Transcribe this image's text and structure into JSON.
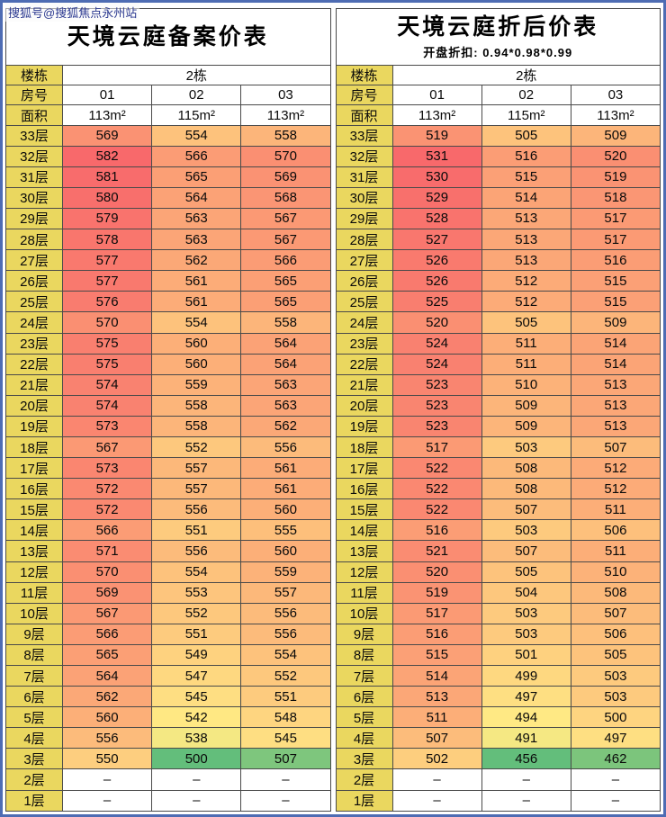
{
  "watermark": "搜狐号@搜狐焦点永州站",
  "labels": {
    "building": "楼栋",
    "room": "房号",
    "area": "面积"
  },
  "chart_data": [
    {
      "type": "heatmap",
      "title": "天境云庭备案价表",
      "subtitle": "",
      "building": "2栋",
      "rooms": [
        "01",
        "02",
        "03"
      ],
      "areas": [
        "113m²",
        "115m²",
        "113m²"
      ],
      "floors": [
        "33层",
        "32层",
        "31层",
        "30层",
        "29层",
        "28层",
        "27层",
        "26层",
        "25层",
        "24层",
        "23层",
        "22层",
        "21层",
        "20层",
        "19层",
        "18层",
        "17层",
        "16层",
        "15层",
        "14层",
        "13层",
        "12层",
        "11层",
        "10层",
        "9层",
        "8层",
        "7层",
        "6层",
        "5层",
        "4层",
        "3层",
        "2层",
        "1层"
      ],
      "values": [
        [
          569,
          554,
          558
        ],
        [
          582,
          566,
          570
        ],
        [
          581,
          565,
          569
        ],
        [
          580,
          564,
          568
        ],
        [
          579,
          563,
          567
        ],
        [
          578,
          563,
          567
        ],
        [
          577,
          562,
          566
        ],
        [
          577,
          561,
          565
        ],
        [
          576,
          561,
          565
        ],
        [
          570,
          554,
          558
        ],
        [
          575,
          560,
          564
        ],
        [
          575,
          560,
          564
        ],
        [
          574,
          559,
          563
        ],
        [
          574,
          558,
          563
        ],
        [
          573,
          558,
          562
        ],
        [
          567,
          552,
          556
        ],
        [
          573,
          557,
          561
        ],
        [
          572,
          557,
          561
        ],
        [
          572,
          556,
          560
        ],
        [
          566,
          551,
          555
        ],
        [
          571,
          556,
          560
        ],
        [
          570,
          554,
          559
        ],
        [
          569,
          553,
          557
        ],
        [
          567,
          552,
          556
        ],
        [
          566,
          551,
          556
        ],
        [
          565,
          549,
          554
        ],
        [
          564,
          547,
          552
        ],
        [
          562,
          545,
          551
        ],
        [
          560,
          542,
          548
        ],
        [
          556,
          538,
          545
        ],
        [
          550,
          500,
          507
        ],
        [
          "–",
          "–",
          "–"
        ],
        [
          "–",
          "–",
          "–"
        ]
      ],
      "color_scale": {
        "min": 500,
        "mid": 541,
        "max": 582,
        "min_color": "#63BE7B",
        "mid_color": "#FFEB84",
        "max_color": "#F8696B",
        "empty_color": "#FFFFFF"
      },
      "label_column_color": "#EAD75F"
    },
    {
      "type": "heatmap",
      "title": "天境云庭折后价表",
      "subtitle": "开盘折扣: 0.94*0.98*0.99",
      "building": "2栋",
      "rooms": [
        "01",
        "02",
        "03"
      ],
      "areas": [
        "113m²",
        "115m²",
        "113m²"
      ],
      "floors": [
        "33层",
        "32层",
        "31层",
        "30层",
        "29层",
        "28层",
        "27层",
        "26层",
        "25层",
        "24层",
        "23层",
        "22层",
        "21层",
        "20层",
        "19层",
        "18层",
        "17层",
        "16层",
        "15层",
        "14层",
        "13层",
        "12层",
        "11层",
        "10层",
        "9层",
        "8层",
        "7层",
        "6层",
        "5层",
        "4层",
        "3层",
        "2层",
        "1层"
      ],
      "values": [
        [
          519,
          505,
          509
        ],
        [
          531,
          516,
          520
        ],
        [
          530,
          515,
          519
        ],
        [
          529,
          514,
          518
        ],
        [
          528,
          513,
          517
        ],
        [
          527,
          513,
          517
        ],
        [
          526,
          513,
          516
        ],
        [
          526,
          512,
          515
        ],
        [
          525,
          512,
          515
        ],
        [
          520,
          505,
          509
        ],
        [
          524,
          511,
          514
        ],
        [
          524,
          511,
          514
        ],
        [
          523,
          510,
          513
        ],
        [
          523,
          509,
          513
        ],
        [
          523,
          509,
          513
        ],
        [
          517,
          503,
          507
        ],
        [
          522,
          508,
          512
        ],
        [
          522,
          508,
          512
        ],
        [
          522,
          507,
          511
        ],
        [
          516,
          503,
          506
        ],
        [
          521,
          507,
          511
        ],
        [
          520,
          505,
          510
        ],
        [
          519,
          504,
          508
        ],
        [
          517,
          503,
          507
        ],
        [
          516,
          503,
          506
        ],
        [
          515,
          501,
          505
        ],
        [
          514,
          499,
          503
        ],
        [
          513,
          497,
          503
        ],
        [
          511,
          494,
          500
        ],
        [
          507,
          491,
          497
        ],
        [
          502,
          456,
          462
        ],
        [
          "–",
          "–",
          "–"
        ],
        [
          "–",
          "–",
          "–"
        ]
      ],
      "color_scale": {
        "min": 456,
        "mid": 493.5,
        "max": 531,
        "min_color": "#63BE7B",
        "mid_color": "#FFEB84",
        "max_color": "#F8696B",
        "empty_color": "#FFFFFF"
      },
      "label_column_color": "#EAD75F"
    }
  ]
}
